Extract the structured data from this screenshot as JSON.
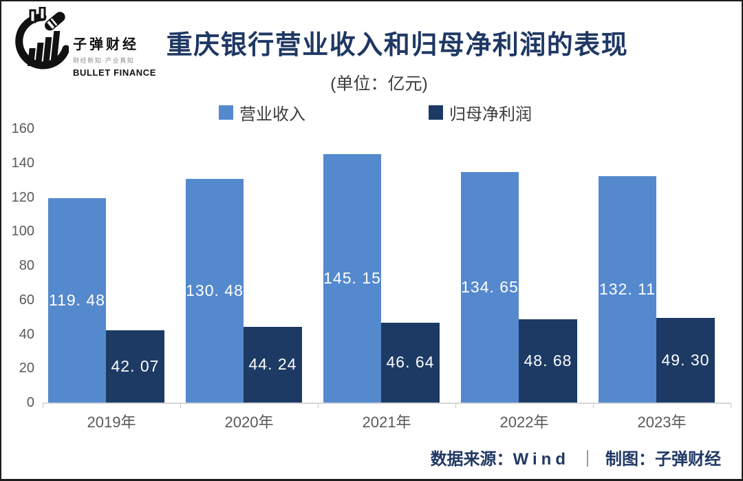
{
  "logo": {
    "brand_cn": "子弹财经",
    "tagline": "财经新知·产业真知",
    "brand_en": "BULLET FINANCE"
  },
  "header": {
    "title": "重庆银行营业收入和归母净利润的表现",
    "subtitle": "(单位：亿元)"
  },
  "legend": [
    {
      "label": "营业收入",
      "color": "#5589CE"
    },
    {
      "label": "归母净利润",
      "color": "#1C3A64"
    }
  ],
  "footer": {
    "source_label": "数据来源：",
    "source": "Wind",
    "separator": "｜",
    "credit_label": "制图：",
    "credit": "子弹财经"
  },
  "colors": {
    "revenue_blue": "#5589CE",
    "profit_navy": "#1C3A64",
    "title_navy": "#1F3864",
    "axis_gray": "#595959",
    "background": "#ffffff"
  },
  "chart_data": {
    "type": "bar",
    "title": "重庆银行营业收入和归母净利润的表现",
    "unit": "亿元",
    "categories": [
      "2019年",
      "2020年",
      "2021年",
      "2022年",
      "2023年"
    ],
    "series": [
      {
        "name": "营业收入",
        "key": "revenue",
        "color": "#5589CE",
        "values": [
          119.48,
          130.48,
          145.15,
          134.65,
          132.11
        ],
        "labels": [
          "119. 48",
          "130. 48",
          "145. 15",
          "134. 65",
          "132. 11"
        ]
      },
      {
        "name": "归母净利润",
        "key": "net-profit",
        "color": "#1C3A64",
        "values": [
          42.07,
          44.24,
          46.64,
          48.68,
          49.3
        ],
        "labels": [
          "42. 07",
          "44. 24",
          "46. 64",
          "48. 68",
          "49. 30"
        ]
      }
    ],
    "ylim": [
      0,
      160
    ],
    "y_ticks": [
      0,
      20,
      40,
      60,
      80,
      100,
      120,
      140,
      160
    ],
    "grid": false,
    "legend_position": "top",
    "value_labels": "inside-center"
  }
}
